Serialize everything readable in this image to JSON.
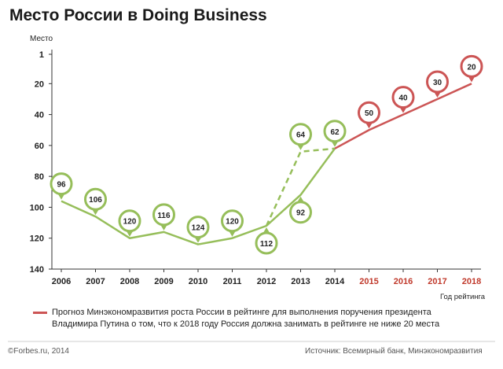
{
  "chart_data": {
    "type": "line",
    "title": "Место  России в Doing Business",
    "ylabel": "Место",
    "xlabel": "Год рейтинга",
    "y_inverted": true,
    "ylim": [
      140,
      1
    ],
    "yticks": [
      1,
      20,
      40,
      60,
      80,
      100,
      120,
      140
    ],
    "x": [
      "2006",
      "2007",
      "2008",
      "2009",
      "2010",
      "2011",
      "2012",
      "2013",
      "2014",
      "2015",
      "2016",
      "2017",
      "2018"
    ],
    "grid": false,
    "series": [
      {
        "style": "solid",
        "color": "#96be5a",
        "points": [
          [
            2006,
            96
          ],
          [
            2007,
            106
          ],
          [
            2008,
            120
          ],
          [
            2009,
            116
          ],
          [
            2010,
            124
          ],
          [
            2011,
            120
          ],
          [
            2012,
            112
          ],
          [
            2013,
            92
          ],
          [
            2014,
            62
          ]
        ]
      },
      {
        "style": "dashed",
        "color": "#96be5a",
        "points": [
          [
            2012,
            112
          ],
          [
            2013,
            64
          ],
          [
            2014,
            62
          ]
        ]
      },
      {
        "name": "Прогноз Минэкономразвития роста России в рейтинге для выполнения поручения президента Владимира Путина о том, что к 2018 году Россия должна занимать в рейтинге не ниже 20 места",
        "style": "solid",
        "color": "#cc5555",
        "points": [
          [
            2014,
            62
          ],
          [
            2015,
            50
          ],
          [
            2016,
            40
          ],
          [
            2017,
            30
          ],
          [
            2018,
            20
          ]
        ]
      }
    ],
    "markers": [
      {
        "x": 2006,
        "y": 96,
        "label": "96",
        "dir": "up",
        "color": "#96be5a"
      },
      {
        "x": 2007,
        "y": 106,
        "label": "106",
        "dir": "up",
        "color": "#96be5a"
      },
      {
        "x": 2008,
        "y": 120,
        "label": "120",
        "dir": "up",
        "color": "#96be5a"
      },
      {
        "x": 2009,
        "y": 116,
        "label": "116",
        "dir": "up",
        "color": "#96be5a"
      },
      {
        "x": 2010,
        "y": 124,
        "label": "124",
        "dir": "up",
        "color": "#96be5a"
      },
      {
        "x": 2011,
        "y": 120,
        "label": "120",
        "dir": "up",
        "color": "#96be5a"
      },
      {
        "x": 2012,
        "y": 112,
        "label": "112",
        "dir": "down",
        "color": "#96be5a"
      },
      {
        "x": 2013,
        "y": 64,
        "label": "64",
        "dir": "up",
        "color": "#96be5a"
      },
      {
        "x": 2013,
        "y": 92,
        "label": "92",
        "dir": "down",
        "color": "#96be5a"
      },
      {
        "x": 2014,
        "y": 62,
        "label": "62",
        "dir": "up",
        "color": "#96be5a"
      },
      {
        "x": 2015,
        "y": 50,
        "label": "50",
        "dir": "up",
        "color": "#cc5555"
      },
      {
        "x": 2016,
        "y": 40,
        "label": "40",
        "dir": "up",
        "color": "#cc5555"
      },
      {
        "x": 2017,
        "y": 30,
        "label": "30",
        "dir": "up",
        "color": "#cc5555"
      },
      {
        "x": 2018,
        "y": 20,
        "label": "20",
        "dir": "up",
        "color": "#cc5555"
      }
    ],
    "forecast_years": [
      "2015",
      "2016",
      "2017",
      "2018"
    ],
    "legend": {
      "position": "bottom",
      "text": "Прогноз Минэкономразвития роста России в рейтинге для выполнения поручения президента Владимира Путина о том, что к 2018 году Россия должна занимать в рейтинге не ниже 20 места"
    }
  },
  "footer": {
    "credit": "©Forbes.ru, 2014",
    "source": "Источник: Всемирный банк, Минэкономразвития"
  },
  "colors": {
    "actual": "#96be5a",
    "forecast": "#cc5555",
    "forecast_label": "#c0392b",
    "axis": "#333333"
  }
}
